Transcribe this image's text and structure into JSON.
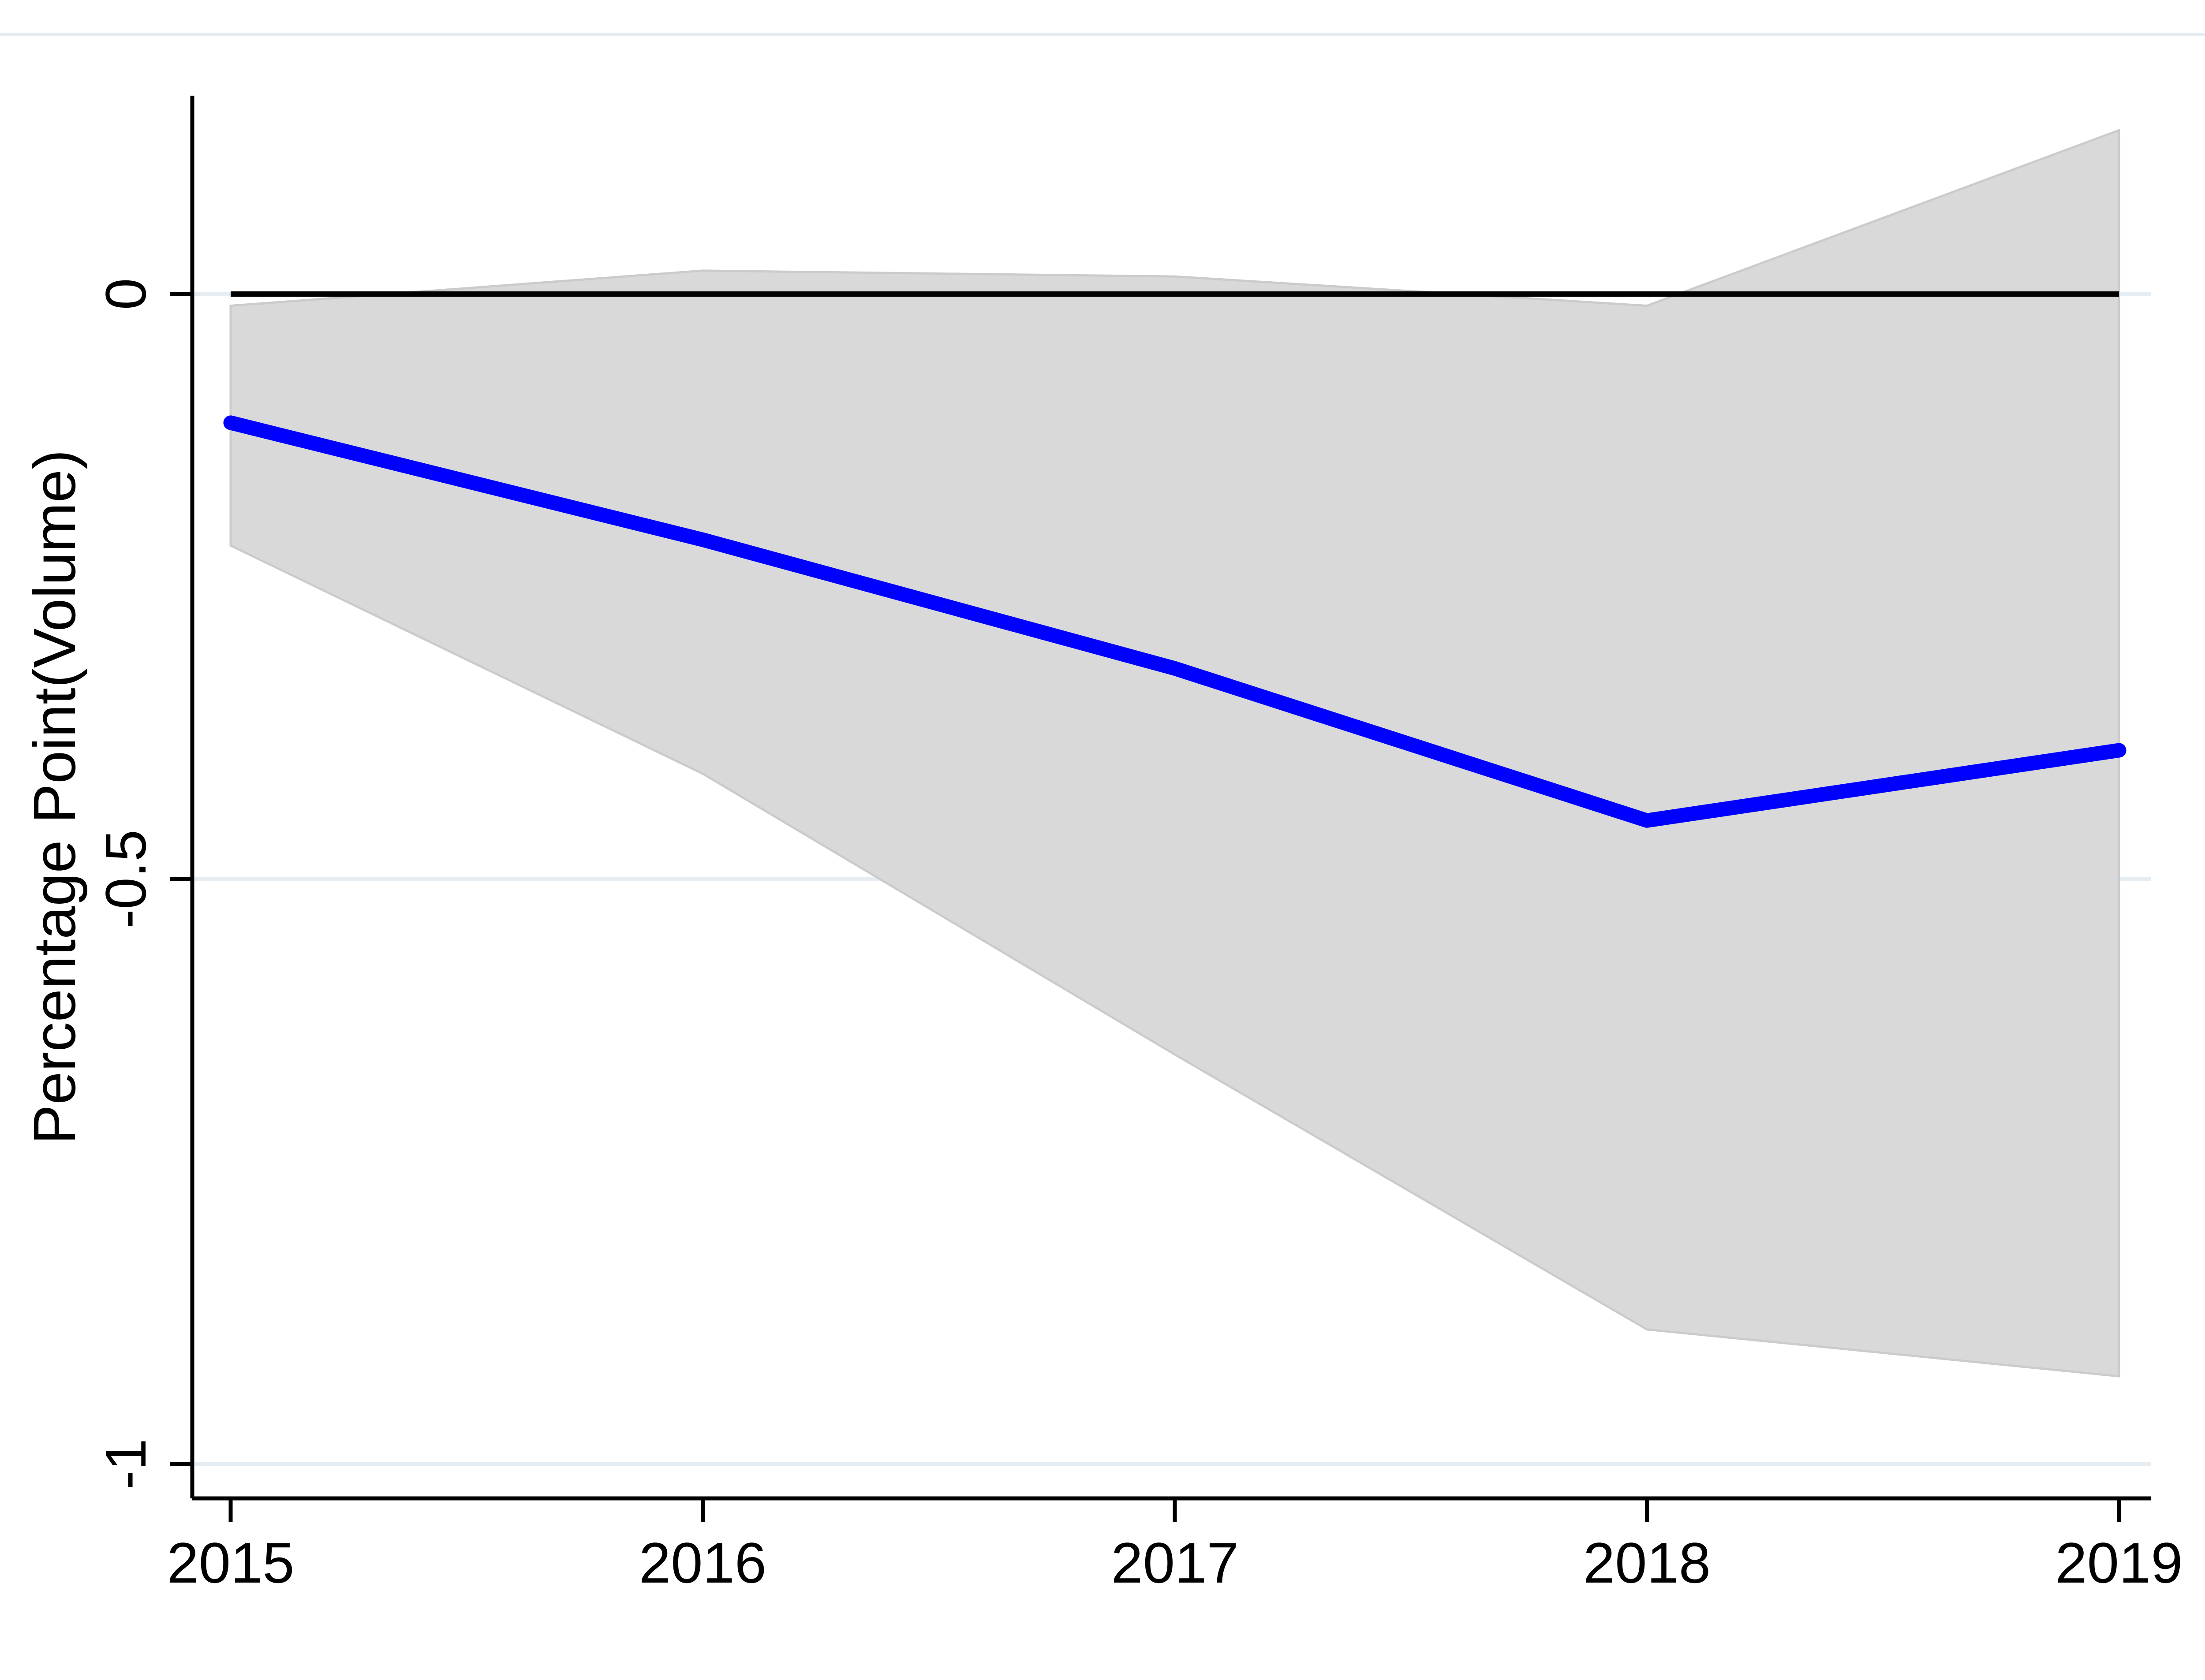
{
  "figure": {
    "background_color": "#ffffff"
  },
  "chart_data": {
    "type": "line",
    "title": "",
    "xlabel": "",
    "ylabel": "Percentage Point(Volume)",
    "x": [
      2015,
      2016,
      2017,
      2018,
      2019
    ],
    "xtick_labels": [
      "2015",
      "2016",
      "2017",
      "2018",
      "2019"
    ],
    "ytick_values": [
      0,
      -0.5,
      -1
    ],
    "ytick_labels": [
      "0",
      "-0.5",
      "-1"
    ],
    "xlim": [
      2015,
      2019
    ],
    "ylim": [
      -1.03,
      0.17
    ],
    "grid": "horizontal",
    "legend": "none",
    "series": [
      {
        "name": "estimate",
        "type": "line",
        "color": "#0000ff",
        "values": [
          -0.11,
          -0.21,
          -0.32,
          -0.45,
          -0.39
        ]
      },
      {
        "name": "ci_upper",
        "type": "band_upper_bound",
        "values": [
          -0.01,
          0.02,
          0.015,
          -0.01,
          0.14
        ]
      },
      {
        "name": "ci_lower",
        "type": "band_lower_bound",
        "values": [
          -0.215,
          -0.41,
          -0.65,
          -0.885,
          -0.925
        ]
      },
      {
        "name": "zero_reference",
        "type": "line",
        "color": "#000000",
        "values": [
          0,
          0,
          0,
          0,
          0
        ]
      }
    ],
    "colors": {
      "estimate_line": "#0000ff",
      "zero_line": "#000000",
      "ci_band_fill": "#d9d9d9",
      "ci_band_edge": "#cbcbcb",
      "gridline": "#e6edf2",
      "plot_border": "#e6edf2",
      "axis": "#000000",
      "text": "#000000"
    }
  }
}
